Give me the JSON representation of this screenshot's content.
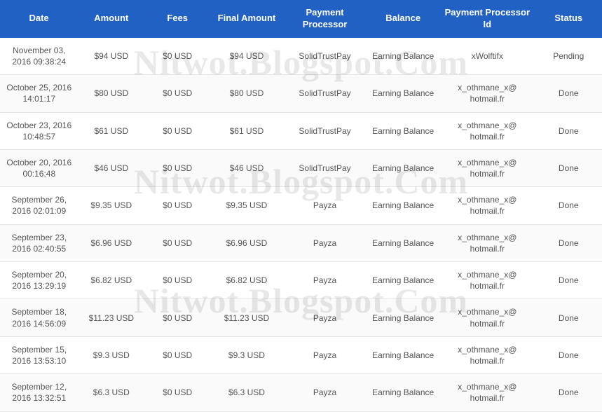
{
  "watermark_text": "Nitwot.Blogspot.Com",
  "colors": {
    "header_bg": "#2161c4",
    "header_text": "#ffffff",
    "row_border": "#e5e5e5",
    "row_alt_bg": "#fafafa",
    "cell_text": "#555555",
    "watermark": "rgba(0,0,0,0.09)"
  },
  "table": {
    "columns": [
      {
        "key": "date",
        "label": "Date"
      },
      {
        "key": "amount",
        "label": "Amount"
      },
      {
        "key": "fees",
        "label": "Fees"
      },
      {
        "key": "final",
        "label": "Final Amount"
      },
      {
        "key": "proc",
        "label": "Payment Processor"
      },
      {
        "key": "bal",
        "label": "Balance"
      },
      {
        "key": "procid",
        "label": "Payment Processor Id"
      },
      {
        "key": "status",
        "label": "Status"
      }
    ],
    "rows": [
      {
        "date": "November 03, 2016 09:38:24",
        "amount": "$94 USD",
        "fees": "$0 USD",
        "final": "$94 USD",
        "proc": "SolidTrustPay",
        "bal": "Earning Balance",
        "procid": "xWolftifx",
        "status": "Pending"
      },
      {
        "date": "October 25, 2016 14:01:17",
        "amount": "$80 USD",
        "fees": "$0 USD",
        "final": "$80 USD",
        "proc": "SolidTrustPay",
        "bal": "Earning Balance",
        "procid": "x_othmane_x@ hotmail.fr",
        "status": "Done"
      },
      {
        "date": "October 23, 2016 10:48:57",
        "amount": "$61 USD",
        "fees": "$0 USD",
        "final": "$61 USD",
        "proc": "SolidTrustPay",
        "bal": "Earning Balance",
        "procid": "x_othmane_x@ hotmail.fr",
        "status": "Done"
      },
      {
        "date": "October 20, 2016 00:16:48",
        "amount": "$46 USD",
        "fees": "$0 USD",
        "final": "$46 USD",
        "proc": "SolidTrustPay",
        "bal": "Earning Balance",
        "procid": "x_othmane_x@ hotmail.fr",
        "status": "Done"
      },
      {
        "date": "September 26, 2016 02:01:09",
        "amount": "$9.35 USD",
        "fees": "$0 USD",
        "final": "$9.35 USD",
        "proc": "Payza",
        "bal": "Earning Balance",
        "procid": "x_othmane_x@ hotmail.fr",
        "status": "Done"
      },
      {
        "date": "September 23, 2016 02:40:55",
        "amount": "$6.96 USD",
        "fees": "$0 USD",
        "final": "$6.96 USD",
        "proc": "Payza",
        "bal": "Earning Balance",
        "procid": "x_othmane_x@ hotmail.fr",
        "status": "Done"
      },
      {
        "date": "September 20, 2016 13:29:19",
        "amount": "$6.82 USD",
        "fees": "$0 USD",
        "final": "$6.82 USD",
        "proc": "Payza",
        "bal": "Earning Balance",
        "procid": "x_othmane_x@ hotmail.fr",
        "status": "Done"
      },
      {
        "date": "September 18, 2016 14:56:09",
        "amount": "$11.23 USD",
        "fees": "$0 USD",
        "final": "$11.23 USD",
        "proc": "Payza",
        "bal": "Earning Balance",
        "procid": "x_othmane_x@ hotmail.fr",
        "status": "Done"
      },
      {
        "date": "September 15, 2016 13:53:10",
        "amount": "$9.3 USD",
        "fees": "$0 USD",
        "final": "$9.3 USD",
        "proc": "Payza",
        "bal": "Earning Balance",
        "procid": "x_othmane_x@ hotmail.fr",
        "status": "Done"
      },
      {
        "date": "September 12, 2016 13:32:51",
        "amount": "$6.3 USD",
        "fees": "$0 USD",
        "final": "$6.3 USD",
        "proc": "Payza",
        "bal": "Earning Balance",
        "procid": "x_othmane_x@ hotmail.fr",
        "status": "Done"
      }
    ]
  }
}
